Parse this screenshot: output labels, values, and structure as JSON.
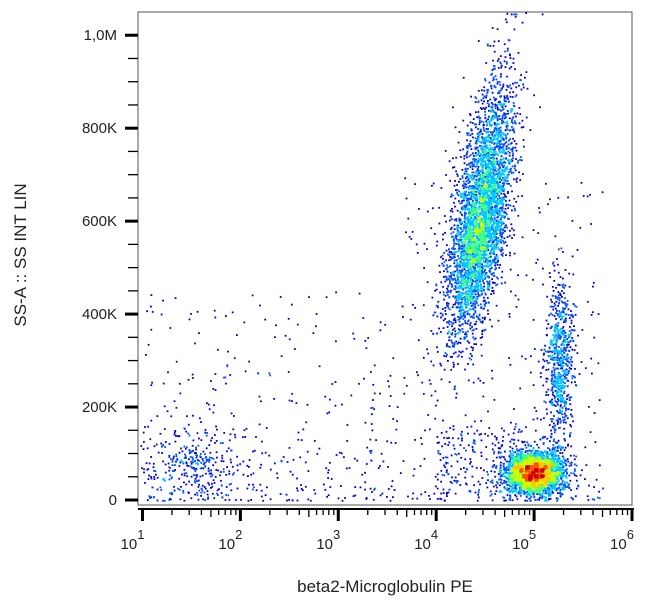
{
  "chart_data": {
    "type": "scatter",
    "subtype": "flow-cytometry density dot plot",
    "xlabel": "beta2-Microglobulin PE",
    "ylabel": "SS-A :: SS INT LIN",
    "x_scale": "log",
    "xlim": [
      9,
      1000000
    ],
    "ylim": [
      0,
      1050000
    ],
    "x_ticks": [
      {
        "value": 10,
        "base": "10",
        "exp": "1"
      },
      {
        "value": 100,
        "base": "10",
        "exp": "2"
      },
      {
        "value": 1000,
        "base": "10",
        "exp": "3"
      },
      {
        "value": 10000,
        "base": "10",
        "exp": "4"
      },
      {
        "value": 100000,
        "base": "10",
        "exp": "5"
      },
      {
        "value": 1000000,
        "base": "10",
        "exp": "6"
      }
    ],
    "y_ticks": [
      {
        "value": 0,
        "label": "0"
      },
      {
        "value": 200000,
        "label": "200K"
      },
      {
        "value": 400000,
        "label": "400K"
      },
      {
        "value": 600000,
        "label": "600K"
      },
      {
        "value": 800000,
        "label": "800K"
      },
      {
        "value": 1000000,
        "label": "1,0M"
      }
    ],
    "grid": false,
    "colormap": [
      "#0000c8",
      "#0050ff",
      "#00c8ff",
      "#40ff80",
      "#c8ff00",
      "#ffc800",
      "#ff5000",
      "#d00000"
    ],
    "populations": [
      {
        "x_center": 28000,
        "y_center": 600000,
        "x_spread_decades": 0.13,
        "y_spread": 115000,
        "count": 4200
      },
      {
        "x_center": 90000,
        "y_center": 60000,
        "x_spread_decades": 0.14,
        "y_spread": 22000,
        "count": 3000
      },
      {
        "x_center": 180000,
        "y_center": 300000,
        "x_spread_decades": 0.07,
        "y_spread": 85000,
        "count": 700
      },
      {
        "x_center": 32,
        "y_center": 80000,
        "x_spread_decades": 0.25,
        "y_spread": 40000,
        "count": 280
      }
    ]
  }
}
